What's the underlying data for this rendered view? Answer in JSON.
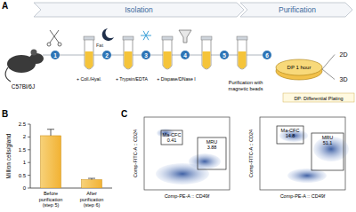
{
  "panel_labels": [
    "A",
    "B",
    "C"
  ],
  "panel_a": {
    "phases": [
      "Isolation",
      "Purification"
    ],
    "mouse": "C57Bl/6J",
    "steps": [
      1,
      2,
      3,
      4,
      5,
      6
    ],
    "fat": "Fat",
    "reagents": [
      "+ Coll./Hyal.",
      "+ Trypsin/EDTA",
      "+ Dispase/DNase I"
    ],
    "purification": [
      "Purification with",
      "magnetic beads"
    ],
    "dish": "DP 1 hour",
    "outputs": [
      "2D",
      "3D"
    ],
    "note": "DP: Differential Plating"
  },
  "chart_data": {
    "type": "bar",
    "categories": [
      "Before purification (step 5)",
      "After purification (step 6)"
    ],
    "values": [
      2.05,
      0.33
    ],
    "errors": [
      0.25,
      0.05
    ],
    "color": "#f2b233",
    "y_label": "Million cells/gland",
    "ylim": [
      0,
      2.5
    ],
    "yticks": [
      0,
      0.5,
      1,
      1.5,
      2,
      2.5
    ]
  },
  "panel_c": {
    "x_label": "Comp-PE-A :: CD49f",
    "y_label": "Comp-FITC-A :: CD24",
    "plots": [
      {
        "gates": [
          {
            "name": "Ma-CFC",
            "value": 0.41
          },
          {
            "name": "MRU",
            "value": 3.88
          }
        ]
      },
      {
        "gates": [
          {
            "name": "Ma-CFC",
            "value": 14.8
          },
          {
            "name": "MRU",
            "value": 51.1
          }
        ]
      }
    ]
  }
}
